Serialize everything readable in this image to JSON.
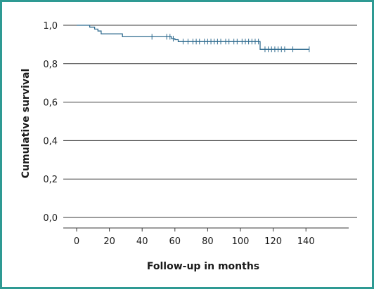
{
  "chart_data": {
    "type": "line",
    "title": "",
    "xlabel": "Follow-up in months",
    "ylabel": "Cumulative survival",
    "xlim": [
      0,
      145
    ],
    "ylim": [
      0,
      1
    ],
    "x_ticks": [
      0,
      20,
      40,
      60,
      80,
      100,
      120,
      140
    ],
    "x_tick_labels": [
      "0",
      "20",
      "40",
      "60",
      "80",
      "100",
      "120",
      "140"
    ],
    "y_ticks": [
      0,
      0.2,
      0.4,
      0.6,
      0.8,
      1.0
    ],
    "y_tick_labels": [
      "0,0",
      "0,2",
      "0,4",
      "0,6",
      "0,8",
      "1,0"
    ],
    "grid": "horizontal",
    "series": [
      {
        "color": "#2f6b8f",
        "step_points": [
          [
            0,
            1.0
          ],
          [
            8,
            1.0
          ],
          [
            8,
            0.99
          ],
          [
            11,
            0.99
          ],
          [
            11,
            0.98
          ],
          [
            13,
            0.98
          ],
          [
            13,
            0.97
          ],
          [
            15,
            0.97
          ],
          [
            15,
            0.955
          ],
          [
            28,
            0.955
          ],
          [
            28,
            0.94
          ],
          [
            58,
            0.94
          ],
          [
            58,
            0.93
          ],
          [
            60,
            0.93
          ],
          [
            60,
            0.925
          ],
          [
            62,
            0.925
          ],
          [
            62,
            0.915
          ],
          [
            112,
            0.915
          ],
          [
            112,
            0.875
          ],
          [
            142,
            0.875
          ]
        ],
        "censored": [
          [
            46,
            0.94
          ],
          [
            55,
            0.94
          ],
          [
            57,
            0.94
          ],
          [
            59,
            0.93
          ],
          [
            65,
            0.915
          ],
          [
            68,
            0.915
          ],
          [
            71,
            0.915
          ],
          [
            73,
            0.915
          ],
          [
            75,
            0.915
          ],
          [
            78,
            0.915
          ],
          [
            80,
            0.915
          ],
          [
            82,
            0.915
          ],
          [
            84,
            0.915
          ],
          [
            86,
            0.915
          ],
          [
            88,
            0.915
          ],
          [
            91,
            0.915
          ],
          [
            93,
            0.915
          ],
          [
            96,
            0.915
          ],
          [
            98,
            0.915
          ],
          [
            101,
            0.915
          ],
          [
            103,
            0.915
          ],
          [
            105,
            0.915
          ],
          [
            107,
            0.915
          ],
          [
            109,
            0.915
          ],
          [
            111,
            0.915
          ],
          [
            115,
            0.875
          ],
          [
            117,
            0.875
          ],
          [
            119,
            0.875
          ],
          [
            121,
            0.875
          ],
          [
            123,
            0.875
          ],
          [
            125,
            0.875
          ],
          [
            127,
            0.875
          ],
          [
            132,
            0.875
          ],
          [
            142,
            0.875
          ]
        ]
      }
    ]
  }
}
